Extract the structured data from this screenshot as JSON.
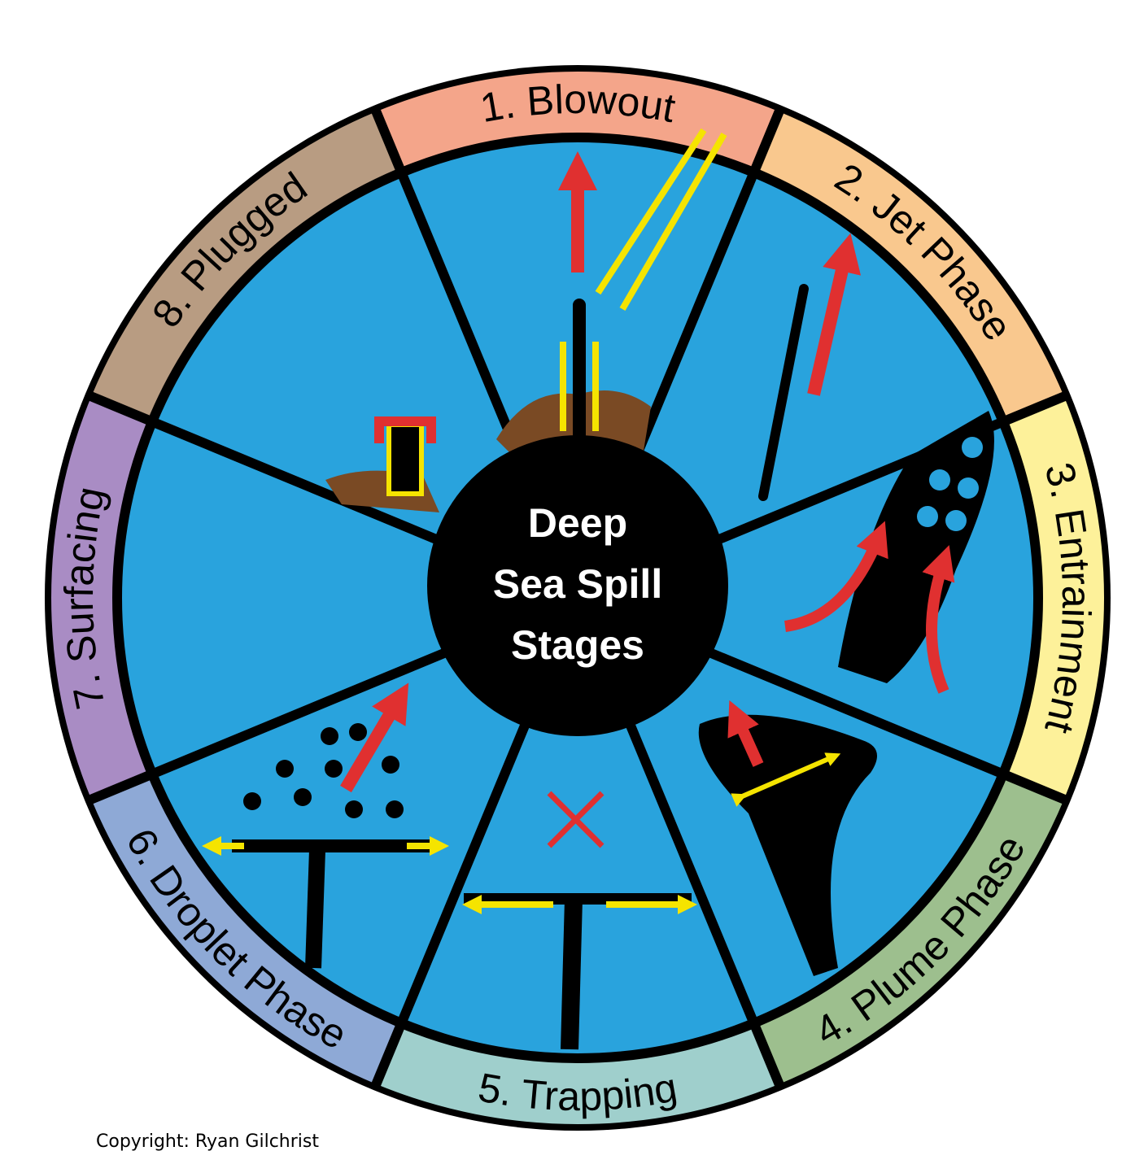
{
  "center_title": [
    "Deep",
    "Sea Spill",
    "Stages"
  ],
  "stages": [
    "1. Blowout",
    "2. Jet Phase",
    "3. Entrainment",
    "4. Plume Phase",
    "5. Trapping",
    "6. Droplet Phase",
    "7. Surfacing",
    "8. Plugged"
  ],
  "copyright": "Copyright: Ryan Gilchrist"
}
